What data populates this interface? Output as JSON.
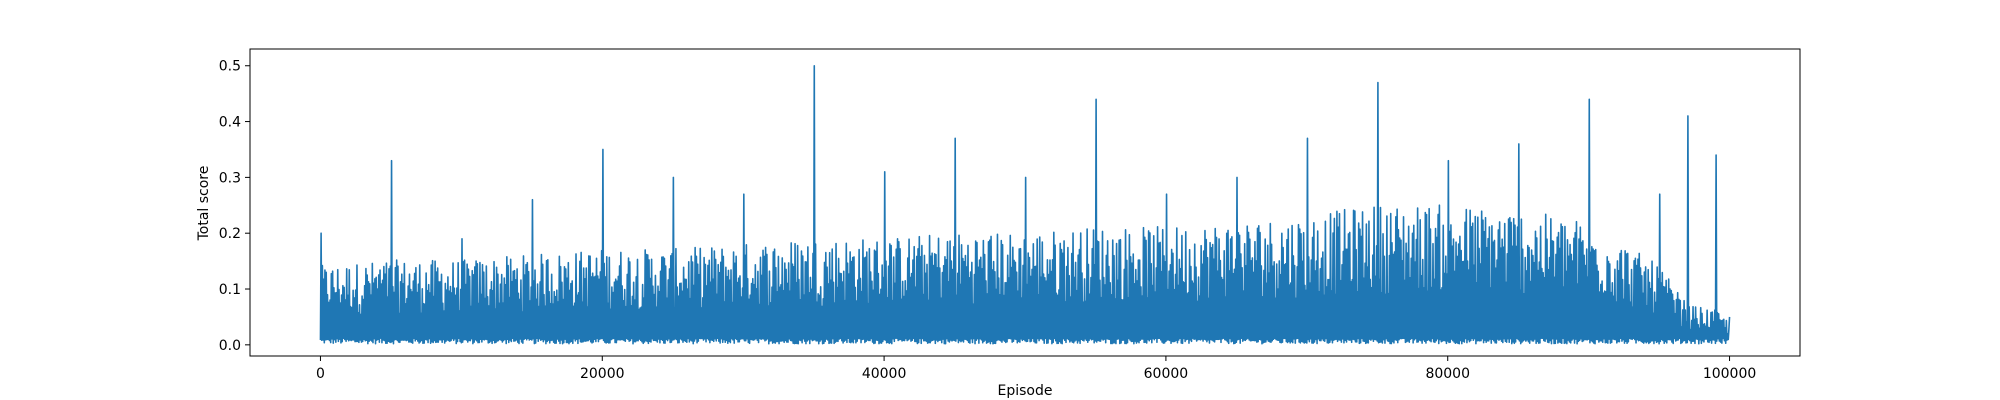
{
  "chart_data": {
    "type": "line",
    "title": "",
    "xlabel": "Episode",
    "ylabel": "Total score",
    "xlim": [
      -5000,
      105000
    ],
    "ylim": [
      -0.02,
      0.53
    ],
    "x_ticks": [
      0,
      20000,
      40000,
      60000,
      80000,
      100000
    ],
    "x_tick_labels": [
      "0",
      "20000",
      "40000",
      "60000",
      "80000",
      "100000"
    ],
    "y_ticks": [
      0.0,
      0.1,
      0.2,
      0.3,
      0.4,
      0.5
    ],
    "y_tick_labels": [
      "0.0",
      "0.1",
      "0.2",
      "0.3",
      "0.4",
      "0.5"
    ],
    "grid": false,
    "legend": "none",
    "series": [
      {
        "color": "#1f77b4",
        "x": [
          0,
          5000,
          10000,
          15000,
          20000,
          25000,
          30000,
          35000,
          40000,
          45000,
          50000,
          55000,
          60000,
          65000,
          70000,
          75000,
          80000,
          85000,
          90000,
          95000,
          97000,
          99000,
          100000
        ],
        "envelope_max": [
          0.2,
          0.33,
          0.19,
          0.26,
          0.35,
          0.3,
          0.27,
          0.5,
          0.31,
          0.37,
          0.3,
          0.44,
          0.27,
          0.3,
          0.37,
          0.47,
          0.33,
          0.36,
          0.44,
          0.27,
          0.41,
          0.34,
          0.05
        ],
        "typical_max": [
          0.14,
          0.15,
          0.15,
          0.16,
          0.17,
          0.17,
          0.18,
          0.19,
          0.19,
          0.2,
          0.2,
          0.21,
          0.21,
          0.22,
          0.23,
          0.25,
          0.25,
          0.24,
          0.22,
          0.14,
          0.07,
          0.06,
          0.04
        ],
        "min": [
          0.002,
          0.002,
          0.002,
          0.002,
          0.002,
          0.002,
          0.002,
          0.002,
          0.002,
          0.002,
          0.002,
          0.002,
          0.002,
          0.002,
          0.002,
          0.002,
          0.002,
          0.002,
          0.002,
          0.002,
          0.002,
          0.002,
          0.002
        ]
      }
    ]
  }
}
